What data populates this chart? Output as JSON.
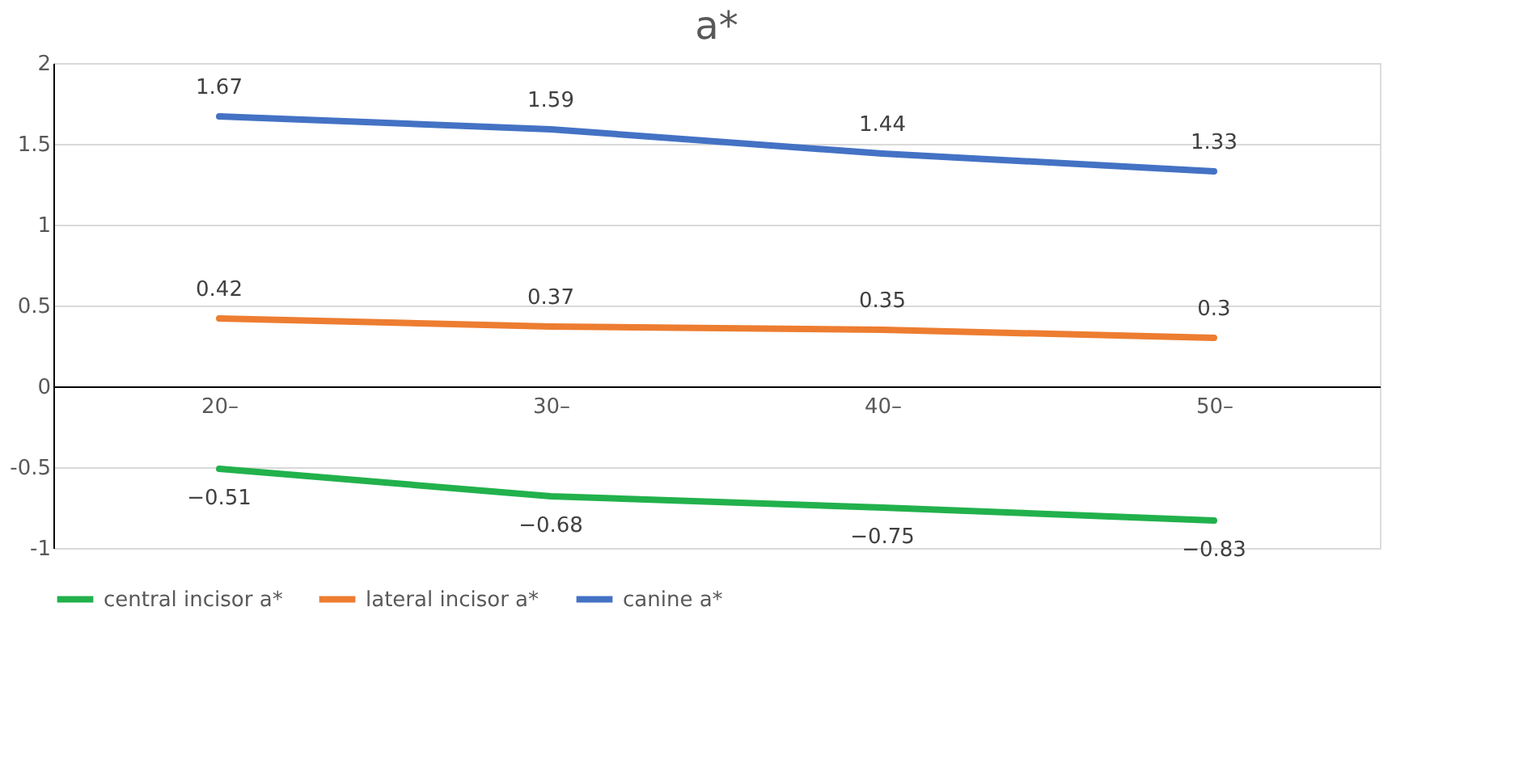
{
  "chart_data": {
    "type": "line",
    "title": "a*",
    "categories": [
      "20–",
      "30–",
      "40–",
      "50–"
    ],
    "series": [
      {
        "name": "central incisor  a*",
        "color": "#22b14c",
        "values": [
          -0.51,
          -0.68,
          -0.75,
          -0.83
        ]
      },
      {
        "name": "lateral incisor  a*",
        "color": "#ed7d31",
        "values": [
          0.42,
          0.37,
          0.35,
          0.3
        ]
      },
      {
        "name": "canine a*",
        "color": "#4472c4",
        "values": [
          1.67,
          1.59,
          1.44,
          1.33
        ]
      }
    ],
    "ylim": [
      -1,
      2
    ],
    "yticks": [
      {
        "value": -1,
        "label": "-1"
      },
      {
        "value": -0.5,
        "label": "-0.5"
      },
      0,
      0.5,
      1,
      1.5,
      2
    ],
    "grid": "y",
    "legend": "bottom",
    "data_labels": true,
    "marker": "none",
    "line_style": "solid"
  }
}
